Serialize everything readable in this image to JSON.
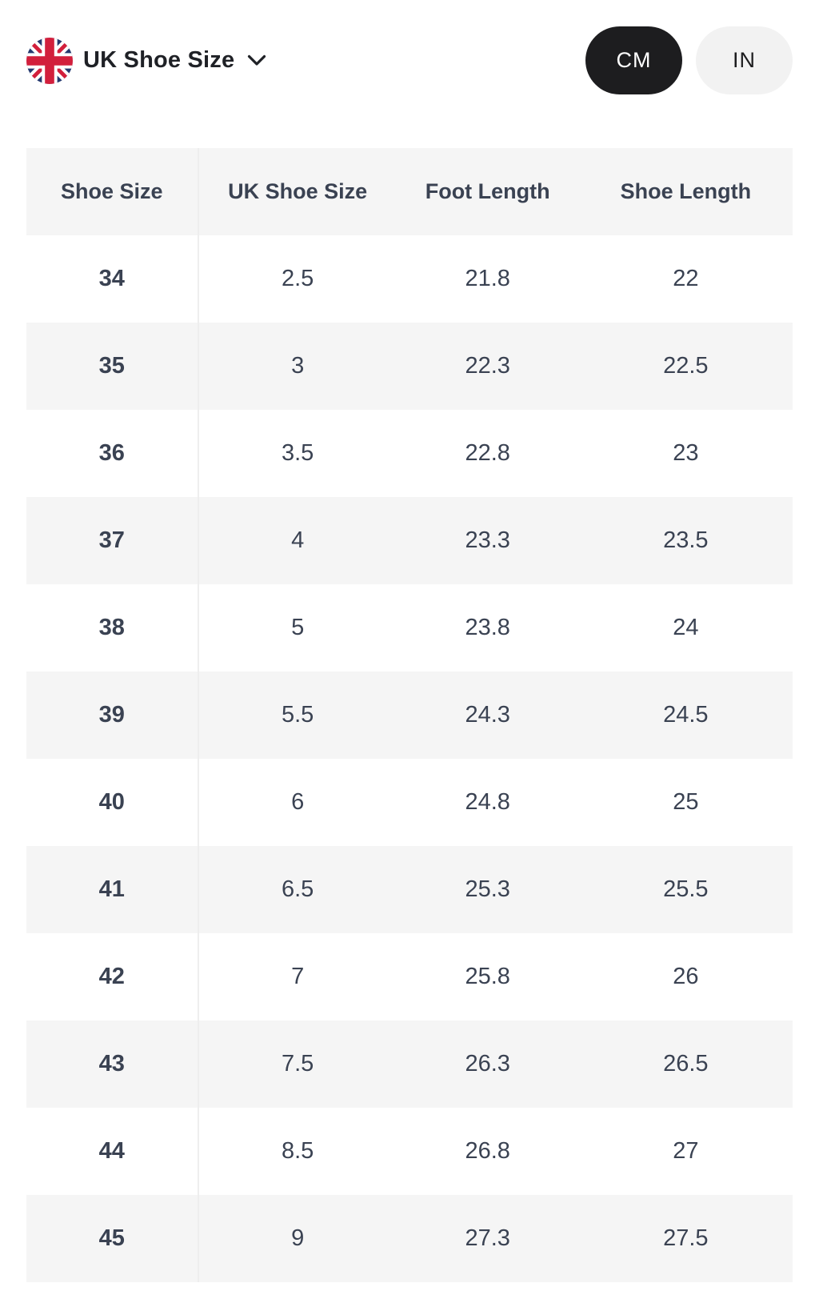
{
  "header": {
    "region_selector": {
      "title": "UK Shoe Size",
      "flag_icon": "uk-flag-icon",
      "chevron_icon": "chevron-down-icon"
    },
    "unit_toggle": {
      "options": [
        {
          "label": "CM",
          "active": true
        },
        {
          "label": "IN",
          "active": false
        }
      ]
    }
  },
  "table": {
    "columns": [
      "Shoe Size",
      "UK Shoe Size",
      "Foot Length",
      "Shoe Length"
    ],
    "rows": [
      [
        "34",
        "2.5",
        "21.8",
        "22"
      ],
      [
        "35",
        "3",
        "22.3",
        "22.5"
      ],
      [
        "36",
        "3.5",
        "22.8",
        "23"
      ],
      [
        "37",
        "4",
        "23.3",
        "23.5"
      ],
      [
        "38",
        "5",
        "23.8",
        "24"
      ],
      [
        "39",
        "5.5",
        "24.3",
        "24.5"
      ],
      [
        "40",
        "6",
        "24.8",
        "25"
      ],
      [
        "41",
        "6.5",
        "25.3",
        "25.5"
      ],
      [
        "42",
        "7",
        "25.8",
        "26"
      ],
      [
        "43",
        "7.5",
        "26.3",
        "26.5"
      ],
      [
        "44",
        "8.5",
        "26.8",
        "27"
      ],
      [
        "45",
        "9",
        "27.3",
        "27.5"
      ]
    ]
  },
  "colors": {
    "active_toggle_bg": "#1d1d1f",
    "inactive_toggle_bg": "#f2f2f2",
    "stripe_bg": "#f5f5f5",
    "table_text": "#3a4252",
    "flag_blue": "#253a70",
    "flag_red": "#d21f3c"
  }
}
